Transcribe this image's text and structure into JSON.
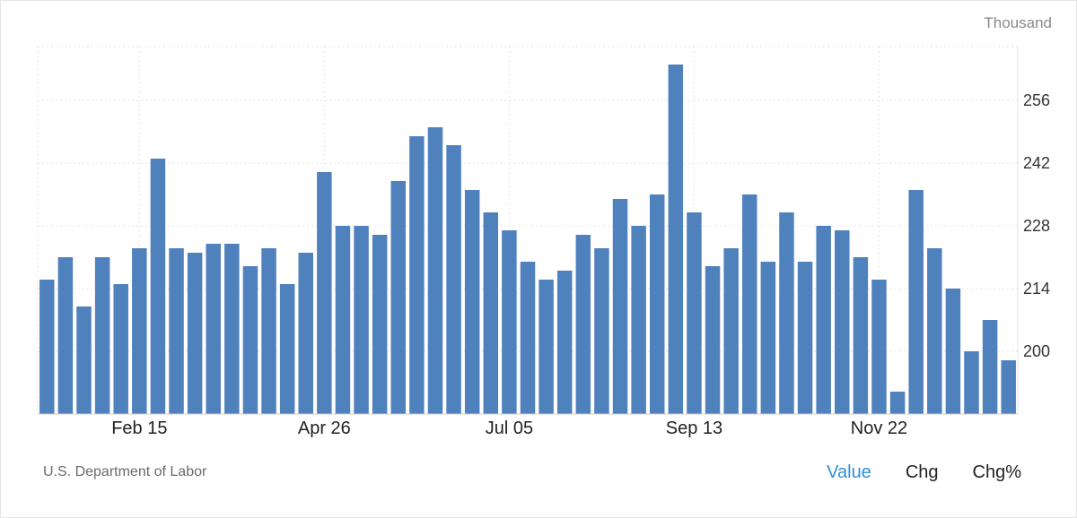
{
  "unit_label": "Thousand",
  "source": "U.S. Department of Labor",
  "tabs": [
    {
      "label": "Value",
      "active": true
    },
    {
      "label": "Chg",
      "active": false
    },
    {
      "label": "Chg%",
      "active": false
    }
  ],
  "colors": {
    "bar": "#4f81bd",
    "active_tab": "#2b8fd9",
    "grid": "#e3e3e3"
  },
  "chart_data": {
    "type": "bar",
    "x_tick_labels": [
      "Feb 15",
      "Apr 26",
      "Jul 05",
      "Sep 13",
      "Nov 22"
    ],
    "x_tick_indices": [
      5,
      15,
      25,
      35,
      45
    ],
    "yticks": [
      200,
      214,
      228,
      242,
      256
    ],
    "ylim": [
      186,
      268
    ],
    "y_axis_position": "right",
    "values": [
      216,
      221,
      210,
      221,
      215,
      223,
      243,
      223,
      222,
      224,
      224,
      219,
      223,
      215,
      222,
      240,
      228,
      228,
      226,
      238,
      248,
      250,
      246,
      236,
      231,
      227,
      220,
      216,
      218,
      226,
      223,
      234,
      228,
      235,
      264,
      231,
      219,
      223,
      235,
      220,
      231,
      220,
      228,
      227,
      221,
      216,
      191,
      236,
      223,
      214,
      200,
      207,
      198
    ]
  }
}
